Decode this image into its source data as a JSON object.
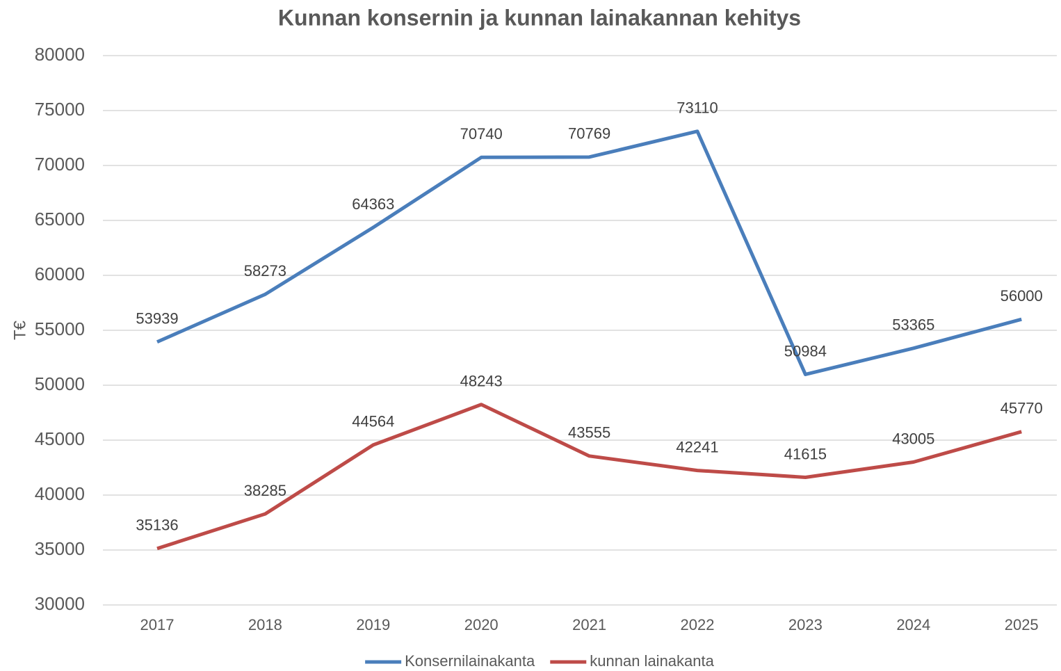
{
  "chart_data": {
    "type": "line",
    "title": "Kunnan konsernin ja kunnan lainakannan kehitys",
    "ylabel": "T€",
    "categories": [
      "2017",
      "2018",
      "2019",
      "2020",
      "2021",
      "2022",
      "2023",
      "2024",
      "2025"
    ],
    "series": [
      {
        "name": "Konsernilainakanta",
        "color": "#4a7ebb",
        "values": [
          53939,
          58273,
          64363,
          70740,
          70769,
          73110,
          50984,
          53365,
          56000
        ]
      },
      {
        "name": "kunnan lainakanta",
        "color": "#be4b48",
        "values": [
          35136,
          38285,
          44564,
          48243,
          43555,
          42241,
          41615,
          43005,
          45770
        ]
      }
    ],
    "ylim": [
      30000,
      80000
    ],
    "yticks": [
      30000,
      35000,
      40000,
      45000,
      50000,
      55000,
      60000,
      65000,
      70000,
      75000,
      80000
    ],
    "grid": true,
    "legend": "bottom"
  }
}
